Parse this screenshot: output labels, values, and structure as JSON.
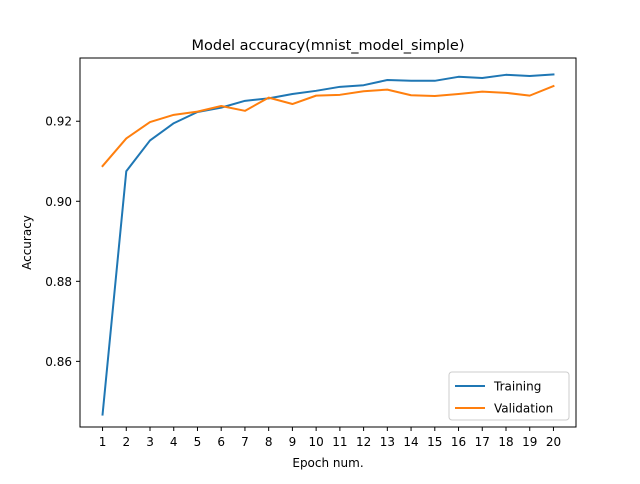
{
  "chart_data": {
    "type": "line",
    "title": "Model accuracy(mnist_model_simple)",
    "xlabel": "Epoch num.",
    "ylabel": "Accuracy",
    "x": [
      1,
      2,
      3,
      4,
      5,
      6,
      7,
      8,
      9,
      10,
      11,
      12,
      13,
      14,
      15,
      16,
      17,
      18,
      19,
      20
    ],
    "xlim": [
      0.05,
      20.95
    ],
    "ylim": [
      0.8436,
      0.9358
    ],
    "yticks": [
      0.86,
      0.88,
      0.9,
      0.92
    ],
    "ytick_labels": [
      "0.86",
      "0.88",
      "0.90",
      "0.92"
    ],
    "xtick_labels": [
      "1",
      "2",
      "3",
      "4",
      "5",
      "6",
      "7",
      "8",
      "9",
      "10",
      "11",
      "12",
      "13",
      "14",
      "15",
      "16",
      "17",
      "18",
      "19",
      "20"
    ],
    "grid": false,
    "legend_position": "bottom-right",
    "series": [
      {
        "name": "Training",
        "color": "#1f77b4",
        "values": [
          0.8467,
          0.9075,
          0.9152,
          0.9195,
          0.9223,
          0.9234,
          0.9251,
          0.9257,
          0.9268,
          0.9276,
          0.9286,
          0.929,
          0.9303,
          0.9301,
          0.9301,
          0.9311,
          0.9308,
          0.9316,
          0.9313,
          0.9317
        ]
      },
      {
        "name": "Validation",
        "color": "#ff7f0e",
        "values": [
          0.9088,
          0.9157,
          0.9198,
          0.9216,
          0.9224,
          0.9238,
          0.9226,
          0.9259,
          0.9243,
          0.9264,
          0.9266,
          0.9275,
          0.9279,
          0.9265,
          0.9263,
          0.9268,
          0.9274,
          0.9271,
          0.9264,
          0.9288
        ]
      }
    ]
  }
}
